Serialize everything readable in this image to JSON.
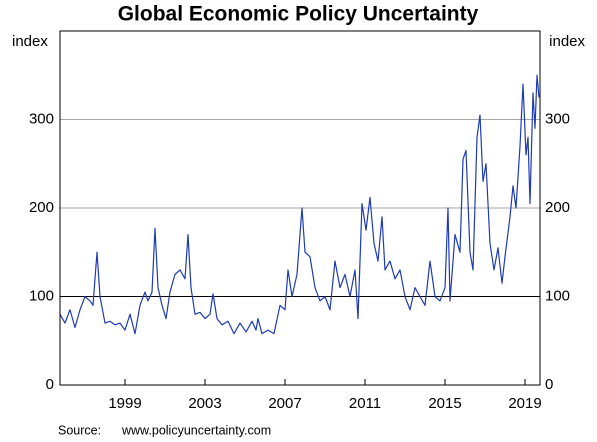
{
  "chart_data": {
    "type": "line",
    "title": "Global Economic Policy Uncertainty",
    "ylabel": "index",
    "y2label": "index",
    "source_label": "Source:",
    "source": "www.policyuncertainty.com",
    "xlim": [
      1995.75,
      2019.75
    ],
    "xticks": [
      1999,
      2003,
      2007,
      2011,
      2015,
      2019
    ],
    "ylim": [
      0,
      400
    ],
    "yticks": [
      0,
      100,
      200,
      300
    ],
    "y2lim": [
      0,
      400
    ],
    "y2ticks": [
      0,
      100,
      200,
      300
    ],
    "grid": true,
    "hline": 100,
    "x": [
      1995.75,
      1996.0,
      1996.25,
      1996.5,
      1996.75,
      1997.0,
      1997.25,
      1997.4,
      1997.5,
      1997.6,
      1997.75,
      1998.0,
      1998.25,
      1998.5,
      1998.75,
      1999.0,
      1999.25,
      1999.5,
      1999.75,
      2000.0,
      2000.15,
      2000.35,
      2000.5,
      2000.65,
      2000.85,
      2001.05,
      2001.25,
      2001.5,
      2001.75,
      2002.0,
      2002.15,
      2002.3,
      2002.5,
      2002.75,
      2003.0,
      2003.25,
      2003.4,
      2003.6,
      2003.85,
      2004.15,
      2004.45,
      2004.75,
      2005.05,
      2005.35,
      2005.55,
      2005.65,
      2005.85,
      2006.15,
      2006.45,
      2006.75,
      2007.0,
      2007.15,
      2007.35,
      2007.6,
      2007.85,
      2008.0,
      2008.25,
      2008.5,
      2008.75,
      2009.0,
      2009.25,
      2009.5,
      2009.75,
      2010.0,
      2010.25,
      2010.5,
      2010.65,
      2010.85,
      2011.05,
      2011.25,
      2011.45,
      2011.65,
      2011.85,
      2012.0,
      2012.25,
      2012.5,
      2012.75,
      2013.0,
      2013.25,
      2013.5,
      2013.75,
      2014.0,
      2014.25,
      2014.5,
      2014.75,
      2015.0,
      2015.15,
      2015.25,
      2015.5,
      2015.75,
      2015.9,
      2016.05,
      2016.25,
      2016.4,
      2016.6,
      2016.75,
      2016.9,
      2017.05,
      2017.25,
      2017.45,
      2017.65,
      2017.85,
      2018.0,
      2018.25,
      2018.4,
      2018.55,
      2018.75,
      2018.9,
      2019.05,
      2019.15,
      2019.25,
      2019.4,
      2019.5,
      2019.6,
      2019.7
    ],
    "series": [
      {
        "name": "Global Economic Policy Uncertainty",
        "color": "#1f3bb3",
        "values": [
          80,
          70,
          85,
          65,
          85,
          100,
          95,
          90,
          120,
          150,
          100,
          70,
          72,
          68,
          70,
          62,
          80,
          58,
          90,
          105,
          95,
          105,
          177,
          110,
          90,
          75,
          105,
          125,
          130,
          120,
          170,
          110,
          80,
          82,
          75,
          80,
          103,
          75,
          68,
          72,
          58,
          70,
          60,
          72,
          62,
          75,
          58,
          62,
          58,
          90,
          85,
          130,
          100,
          125,
          200,
          150,
          145,
          110,
          95,
          100,
          85,
          140,
          110,
          125,
          100,
          130,
          75,
          205,
          175,
          212,
          160,
          140,
          190,
          130,
          140,
          120,
          130,
          100,
          85,
          110,
          100,
          90,
          140,
          100,
          95,
          110,
          200,
          95,
          170,
          150,
          255,
          265,
          150,
          130,
          280,
          305,
          230,
          250,
          160,
          130,
          155,
          115,
          145,
          190,
          225,
          200,
          270,
          340,
          260,
          280,
          205,
          330,
          290,
          350,
          325
        ]
      }
    ]
  }
}
